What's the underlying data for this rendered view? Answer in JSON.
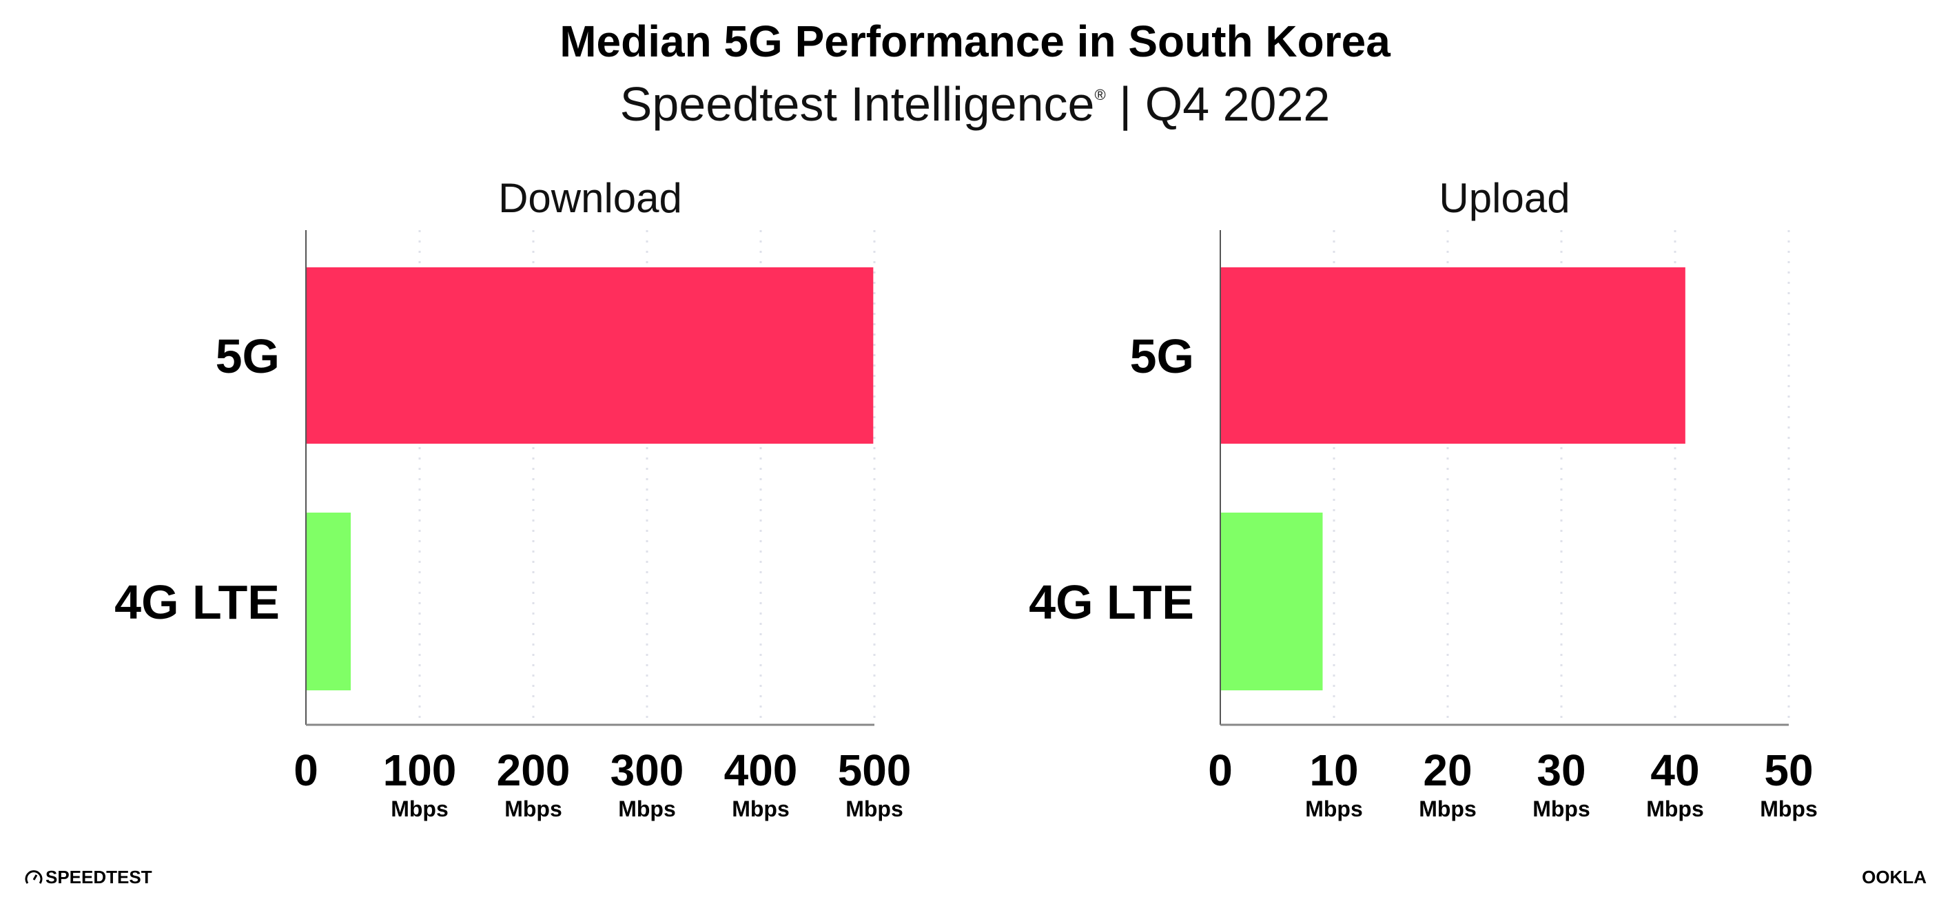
{
  "chart_data": [
    {
      "type": "bar",
      "orientation": "horizontal",
      "title": "Median 5G Performance in South Korea",
      "subtitle": "Speedtest Intelligence® | Q4 2022",
      "panel_title": "Download",
      "categories": [
        "5G",
        "4G LTE"
      ],
      "values": [
        499,
        39.4
      ],
      "colors": [
        "#ff2e5c",
        "#80ff66"
      ],
      "xlim": [
        0,
        500
      ],
      "xticks": [
        "0",
        "100",
        "200",
        "300",
        "400",
        "500"
      ],
      "xtick_unit": "Mbps",
      "grid": "vertical dotted"
    },
    {
      "type": "bar",
      "orientation": "horizontal",
      "panel_title": "Upload",
      "categories": [
        "5G",
        "4G LTE"
      ],
      "values": [
        40.9,
        9.0
      ],
      "colors": [
        "#ff2e5c",
        "#80ff66"
      ],
      "xlim": [
        0,
        50
      ],
      "xticks": [
        "0",
        "10",
        "20",
        "30",
        "40",
        "50"
      ],
      "xtick_unit": "Mbps",
      "grid": "vertical dotted"
    }
  ],
  "header": {
    "title": "Median 5G Performance in South Korea",
    "subtitle_main": "Speedtest Intelligence",
    "subtitle_reg": "®",
    "subtitle_rest": " | Q4 2022"
  },
  "footer": {
    "left_logo": "SPEEDTEST",
    "right_logo": "OOKLA"
  }
}
